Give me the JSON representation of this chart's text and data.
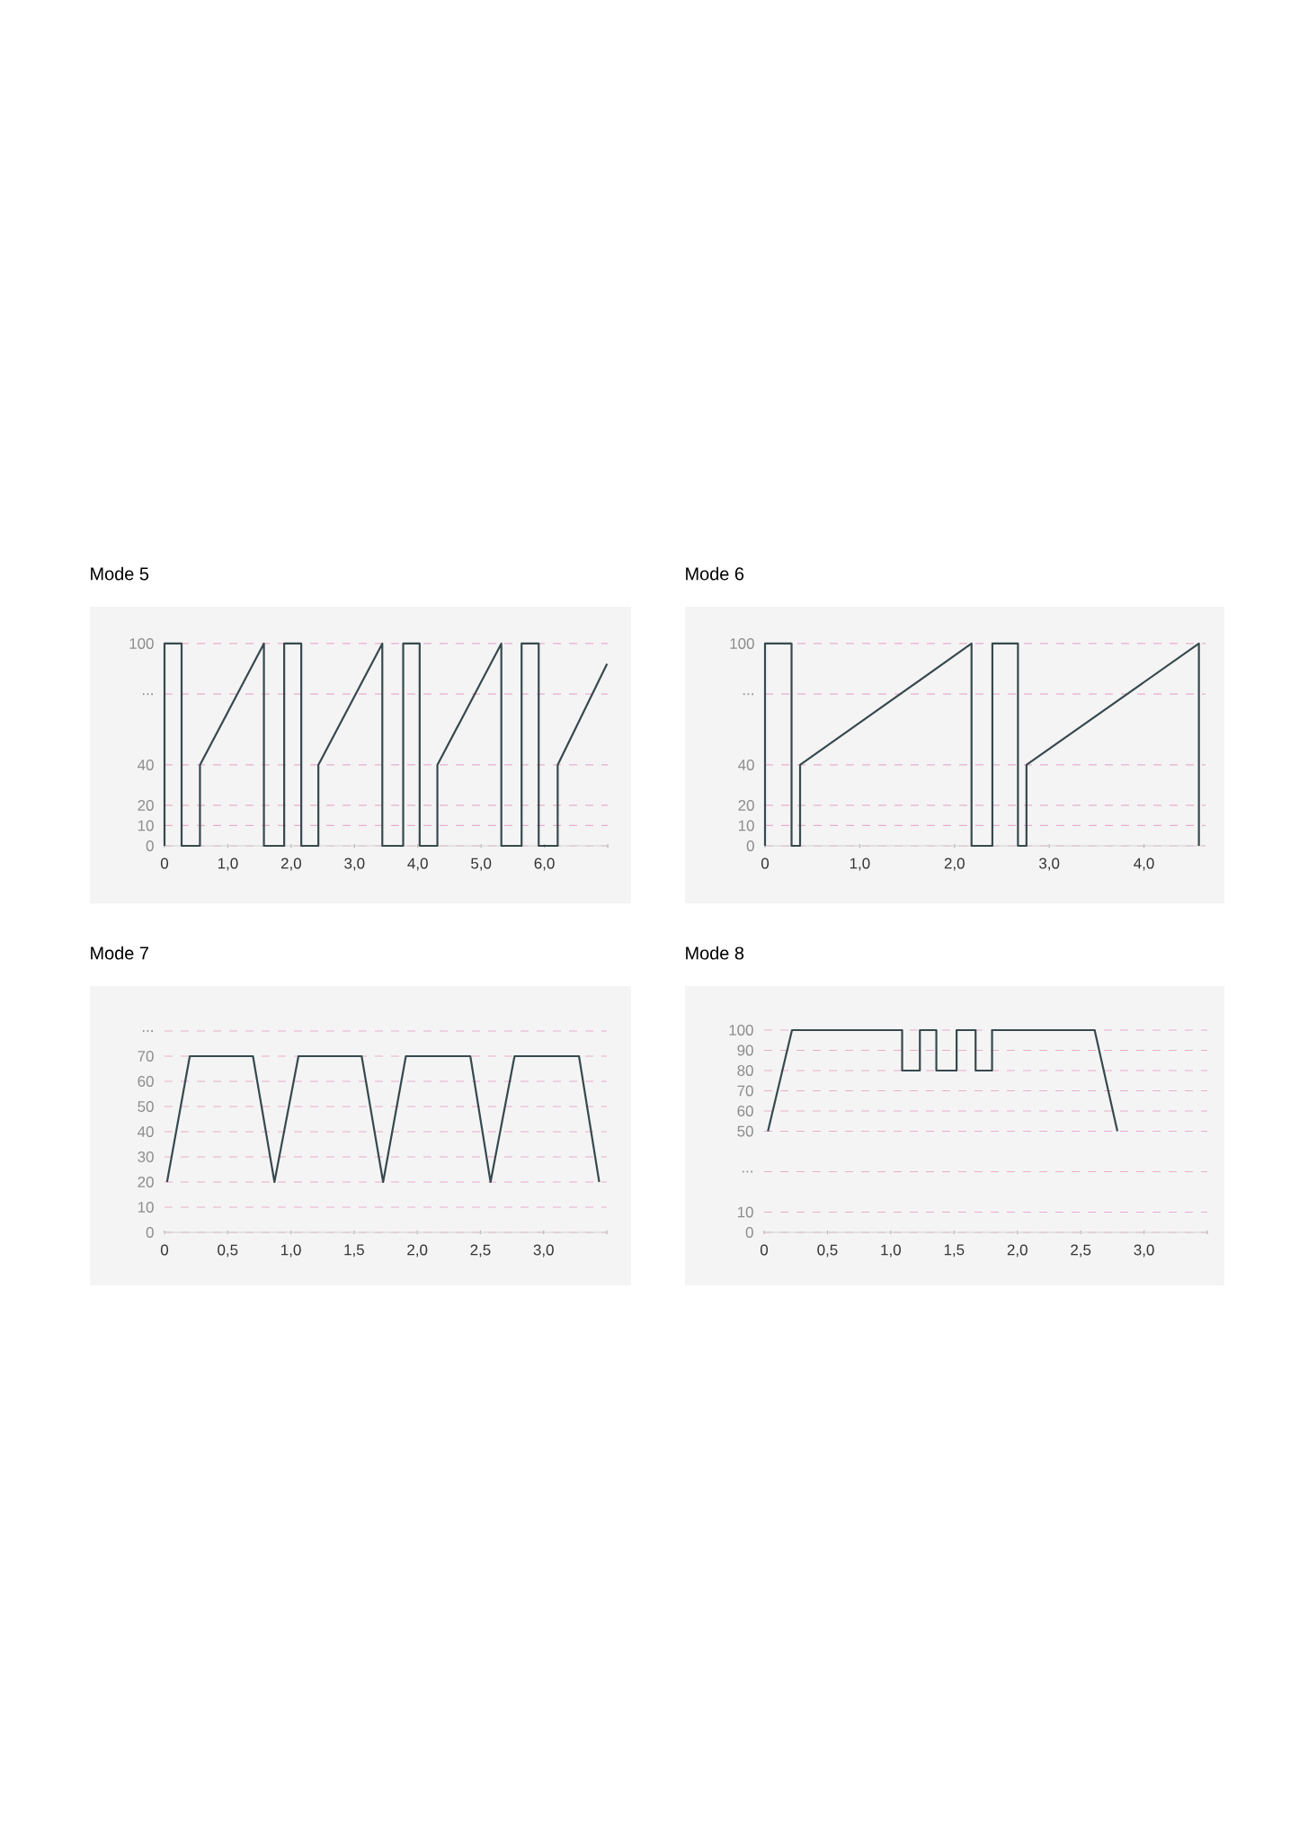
{
  "chart_data": [
    {
      "type": "line",
      "title": "Mode 5",
      "color": "#36494e",
      "grid": "y",
      "xlim": [
        0,
        7
      ],
      "ylim": [
        0,
        100
      ],
      "x": [
        0,
        0,
        0.27,
        0.27,
        0.56,
        0.56,
        1.57,
        1.57,
        1.89,
        1.89,
        2.16,
        2.16,
        2.43,
        2.43,
        3.44,
        3.44,
        3.77,
        3.77,
        4.03,
        4.03,
        4.31,
        4.31,
        5.32,
        5.32,
        5.64,
        5.64,
        5.91,
        5.91,
        6.21,
        6.21,
        6.99
      ],
      "values": [
        0,
        100,
        100,
        0,
        0,
        40,
        100,
        0,
        0,
        100,
        100,
        0,
        0,
        40,
        100,
        0,
        0,
        100,
        100,
        0,
        0,
        40,
        100,
        0,
        0,
        100,
        100,
        0,
        0,
        40,
        90
      ],
      "xticks": [
        0,
        {
          "value": 1,
          "label": "1,0"
        },
        {
          "value": 2,
          "label": "2,0"
        },
        {
          "value": 3,
          "label": "3,0"
        },
        {
          "value": 4,
          "label": "4,0"
        },
        {
          "value": 5,
          "label": "5,0"
        },
        {
          "value": 6,
          "label": "6,0"
        },
        {
          "value": 7,
          "label": null
        }
      ],
      "yticks": [
        0,
        10,
        20,
        40,
        {
          "value": 75,
          "label": "..."
        },
        100
      ]
    },
    {
      "type": "line",
      "title": "Mode 6",
      "color": "#36494e",
      "grid": "y",
      "xlim": [
        0,
        4.65
      ],
      "ylim": [
        0,
        100
      ],
      "x": [
        0,
        0,
        0.28,
        0.28,
        0.37,
        0.37,
        2.18,
        2.18,
        2.4,
        2.4,
        2.67,
        2.67,
        2.76,
        2.76,
        4.58,
        4.58
      ],
      "values": [
        0,
        100,
        100,
        0,
        0,
        40,
        100,
        0,
        0,
        100,
        100,
        0,
        0,
        40,
        100,
        0
      ],
      "xticks": [
        0,
        {
          "value": 1,
          "label": "1,0"
        },
        {
          "value": 2,
          "label": "2,0"
        },
        {
          "value": 3,
          "label": "3,0"
        },
        {
          "value": 4,
          "label": "4,0"
        }
      ],
      "yticks": [
        0,
        10,
        20,
        40,
        {
          "value": 75,
          "label": "..."
        },
        100
      ]
    },
    {
      "type": "line",
      "title": "Mode 7",
      "color": "#36494e",
      "grid": "y",
      "xlim": [
        0,
        3.5
      ],
      "ylim": [
        0,
        80
      ],
      "x": [
        0.02,
        0.2,
        0.7,
        0.87,
        1.06,
        1.56,
        1.73,
        1.91,
        2.42,
        2.58,
        2.77,
        3.28,
        3.44
      ],
      "values": [
        20,
        70,
        70,
        20,
        70,
        70,
        20,
        70,
        70,
        20,
        70,
        70,
        20
      ],
      "xticks": [
        0,
        {
          "value": 0.5,
          "label": "0,5"
        },
        {
          "value": 1,
          "label": "1,0"
        },
        {
          "value": 1.5,
          "label": "1,5"
        },
        {
          "value": 2,
          "label": "2,0"
        },
        {
          "value": 2.5,
          "label": "2,5"
        },
        {
          "value": 3,
          "label": "3,0"
        },
        {
          "value": 3.5,
          "label": null
        }
      ],
      "yticks": [
        0,
        10,
        20,
        30,
        40,
        50,
        60,
        70,
        {
          "value": 80,
          "label": "..."
        }
      ]
    },
    {
      "type": "line",
      "title": "Mode 8",
      "color": "#36494e",
      "grid": "y",
      "xlim": [
        0,
        3.5
      ],
      "ylim": [
        0,
        100
      ],
      "x": [
        0.03,
        0.22,
        1.09,
        1.09,
        1.23,
        1.23,
        1.36,
        1.36,
        1.52,
        1.52,
        1.67,
        1.67,
        1.8,
        1.8,
        2.61,
        2.79
      ],
      "values": [
        50,
        100,
        100,
        80,
        80,
        100,
        100,
        80,
        80,
        100,
        100,
        80,
        80,
        100,
        100,
        50
      ],
      "xticks": [
        0,
        {
          "value": 0.5,
          "label": "0,5"
        },
        {
          "value": 1,
          "label": "1,0"
        },
        {
          "value": 1.5,
          "label": "1,5"
        },
        {
          "value": 2,
          "label": "2,0"
        },
        {
          "value": 2.5,
          "label": "2,5"
        },
        {
          "value": 3,
          "label": "3,0"
        },
        {
          "value": 3.5,
          "label": null
        }
      ],
      "yticks": [
        0,
        10,
        {
          "value": 30,
          "label": "..."
        },
        50,
        60,
        70,
        80,
        90,
        100
      ]
    }
  ]
}
